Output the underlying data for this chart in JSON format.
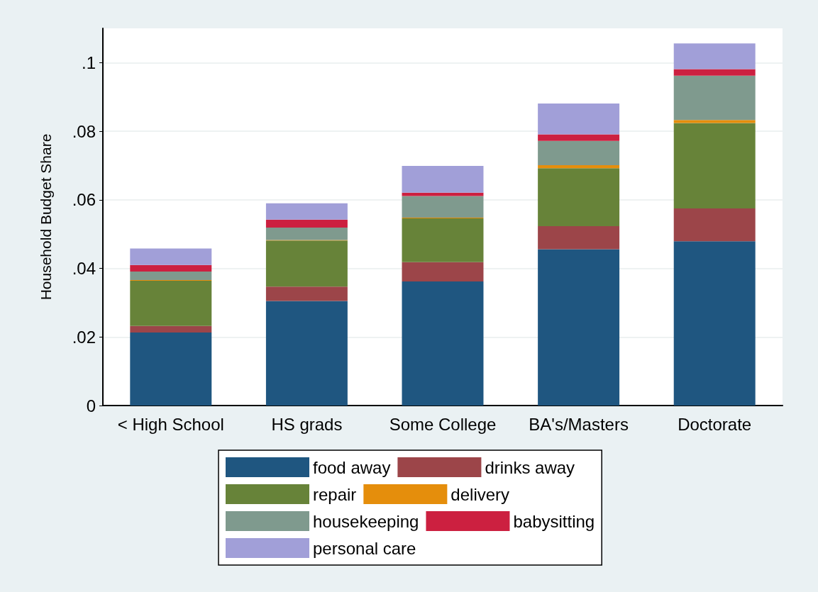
{
  "chart_data": {
    "type": "bar",
    "ylabel": "Household Budget Share",
    "categories": [
      "< High School",
      "HS grads",
      "Some College",
      "BA's/Masters",
      "Doctorate"
    ],
    "stacked": true,
    "grid": "y",
    "legend": "bottom",
    "ylim": [
      0,
      0.11
    ],
    "yticks": [
      {
        "value": 0,
        "label": "0"
      },
      {
        "value": 0.02,
        "label": ".02"
      },
      {
        "value": 0.04,
        "label": ".04"
      },
      {
        "value": 0.06,
        "label": ".06"
      },
      {
        "value": 0.08,
        "label": ".08"
      },
      {
        "value": 0.1,
        "label": ".1"
      }
    ],
    "series": [
      {
        "name": "food away",
        "color": "#1f5680",
        "values": [
          0.0213,
          0.0305,
          0.0362,
          0.0456,
          0.0479
        ]
      },
      {
        "name": "drinks away",
        "color": "#9c4549",
        "values": [
          0.0019,
          0.0042,
          0.0056,
          0.0067,
          0.0096
        ]
      },
      {
        "name": "repair",
        "color": "#678339",
        "values": [
          0.0132,
          0.0134,
          0.0128,
          0.0169,
          0.0249
        ]
      },
      {
        "name": "delivery",
        "color": "#e58e0c",
        "values": [
          0.0002,
          0.0002,
          0.0002,
          0.0009,
          0.0009
        ]
      },
      {
        "name": "housekeeping",
        "color": "#7f9a8e",
        "values": [
          0.0025,
          0.0036,
          0.0063,
          0.0071,
          0.0129
        ]
      },
      {
        "name": "babysitting",
        "color": "#cc2040",
        "values": [
          0.0019,
          0.0023,
          0.001,
          0.0019,
          0.0019
        ]
      },
      {
        "name": "personal care",
        "color": "#a19fd8",
        "values": [
          0.0048,
          0.0048,
          0.0078,
          0.009,
          0.0075
        ]
      }
    ]
  }
}
